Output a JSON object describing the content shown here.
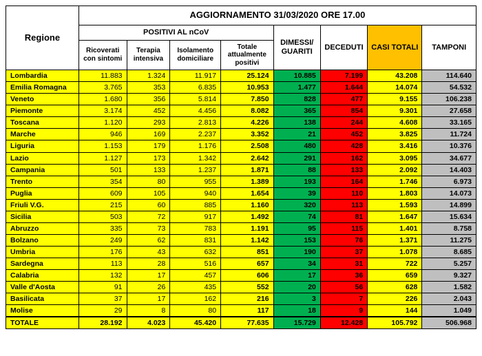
{
  "title": "AGGIORNAMENTO 31/03/2020 ORE 17.00",
  "colors": {
    "yellow": "#ffff00",
    "green": "#00b050",
    "red": "#ff0000",
    "orange": "#ffc000",
    "gray": "#bfbfbf",
    "white": "#ffffff",
    "black_text": "#000000"
  },
  "columns": {
    "regione": "Regione",
    "positivi_group": "POSITIVI AL nCoV",
    "ricoverati": "Ricoverati con sintomi",
    "terapia": "Terapia intensiva",
    "isolamento": "Isolamento domiciliare",
    "totale_pos": "Totale attualmente positivi",
    "dimessi": "DIMESSI/ GUARITI",
    "deceduti": "DECEDUTI",
    "casi": "CASI TOTALI",
    "tamponi": "TAMPONI"
  },
  "col_widths_pct": [
    15.5,
    10.2,
    9.2,
    10.8,
    11.2,
    10,
    10,
    11.6,
    11.5
  ],
  "rows": [
    {
      "r": "Lombardia",
      "ric": "11.883",
      "ter": "1.324",
      "iso": "11.917",
      "tot": "25.124",
      "dim": "10.885",
      "dec": "7.199",
      "cas": "43.208",
      "tam": "114.640"
    },
    {
      "r": "Emilia Romagna",
      "ric": "3.765",
      "ter": "353",
      "iso": "6.835",
      "tot": "10.953",
      "dim": "1.477",
      "dec": "1.644",
      "cas": "14.074",
      "tam": "54.532"
    },
    {
      "r": "Veneto",
      "ric": "1.680",
      "ter": "356",
      "iso": "5.814",
      "tot": "7.850",
      "dim": "828",
      "dec": "477",
      "cas": "9.155",
      "tam": "106.238"
    },
    {
      "r": "Piemonte",
      "ric": "3.174",
      "ter": "452",
      "iso": "4.456",
      "tot": "8.082",
      "dim": "365",
      "dec": "854",
      "cas": "9.301",
      "tam": "27.658"
    },
    {
      "r": "Toscana",
      "ric": "1.120",
      "ter": "293",
      "iso": "2.813",
      "tot": "4.226",
      "dim": "138",
      "dec": "244",
      "cas": "4.608",
      "tam": "33.165"
    },
    {
      "r": "Marche",
      "ric": "946",
      "ter": "169",
      "iso": "2.237",
      "tot": "3.352",
      "dim": "21",
      "dec": "452",
      "cas": "3.825",
      "tam": "11.724"
    },
    {
      "r": "Liguria",
      "ric": "1.153",
      "ter": "179",
      "iso": "1.176",
      "tot": "2.508",
      "dim": "480",
      "dec": "428",
      "cas": "3.416",
      "tam": "10.376"
    },
    {
      "r": "Lazio",
      "ric": "1.127",
      "ter": "173",
      "iso": "1.342",
      "tot": "2.642",
      "dim": "291",
      "dec": "162",
      "cas": "3.095",
      "tam": "34.677"
    },
    {
      "r": "Campania",
      "ric": "501",
      "ter": "133",
      "iso": "1.237",
      "tot": "1.871",
      "dim": "88",
      "dec": "133",
      "cas": "2.092",
      "tam": "14.403"
    },
    {
      "r": "Trento",
      "ric": "354",
      "ter": "80",
      "iso": "955",
      "tot": "1.389",
      "dim": "193",
      "dec": "164",
      "cas": "1.746",
      "tam": "6.973"
    },
    {
      "r": "Puglia",
      "ric": "609",
      "ter": "105",
      "iso": "940",
      "tot": "1.654",
      "dim": "39",
      "dec": "110",
      "cas": "1.803",
      "tam": "14.073"
    },
    {
      "r": "Friuli V.G.",
      "ric": "215",
      "ter": "60",
      "iso": "885",
      "tot": "1.160",
      "dim": "320",
      "dec": "113",
      "cas": "1.593",
      "tam": "14.899"
    },
    {
      "r": "Sicilia",
      "ric": "503",
      "ter": "72",
      "iso": "917",
      "tot": "1.492",
      "dim": "74",
      "dec": "81",
      "cas": "1.647",
      "tam": "15.634"
    },
    {
      "r": "Abruzzo",
      "ric": "335",
      "ter": "73",
      "iso": "783",
      "tot": "1.191",
      "dim": "95",
      "dec": "115",
      "cas": "1.401",
      "tam": "8.758"
    },
    {
      "r": "Bolzano",
      "ric": "249",
      "ter": "62",
      "iso": "831",
      "tot": "1.142",
      "dim": "153",
      "dec": "76",
      "cas": "1.371",
      "tam": "11.275"
    },
    {
      "r": "Umbria",
      "ric": "176",
      "ter": "43",
      "iso": "632",
      "tot": "851",
      "dim": "190",
      "dec": "37",
      "cas": "1.078",
      "tam": "8.685"
    },
    {
      "r": "Sardegna",
      "ric": "113",
      "ter": "28",
      "iso": "516",
      "tot": "657",
      "dim": "34",
      "dec": "31",
      "cas": "722",
      "tam": "5.257"
    },
    {
      "r": "Calabria",
      "ric": "132",
      "ter": "17",
      "iso": "457",
      "tot": "606",
      "dim": "17",
      "dec": "36",
      "cas": "659",
      "tam": "9.327"
    },
    {
      "r": "Valle d'Aosta",
      "ric": "91",
      "ter": "26",
      "iso": "435",
      "tot": "552",
      "dim": "20",
      "dec": "56",
      "cas": "628",
      "tam": "1.582"
    },
    {
      "r": "Basilicata",
      "ric": "37",
      "ter": "17",
      "iso": "162",
      "tot": "216",
      "dim": "3",
      "dec": "7",
      "cas": "226",
      "tam": "2.043"
    },
    {
      "r": "Molise",
      "ric": "29",
      "ter": "8",
      "iso": "80",
      "tot": "117",
      "dim": "18",
      "dec": "9",
      "cas": "144",
      "tam": "1.049"
    }
  ],
  "total": {
    "r": "TOTALE",
    "ric": "28.192",
    "ter": "4.023",
    "iso": "45.420",
    "tot": "77.635",
    "dim": "15.729",
    "dec": "12.428",
    "cas": "105.792",
    "tam": "506.968"
  }
}
